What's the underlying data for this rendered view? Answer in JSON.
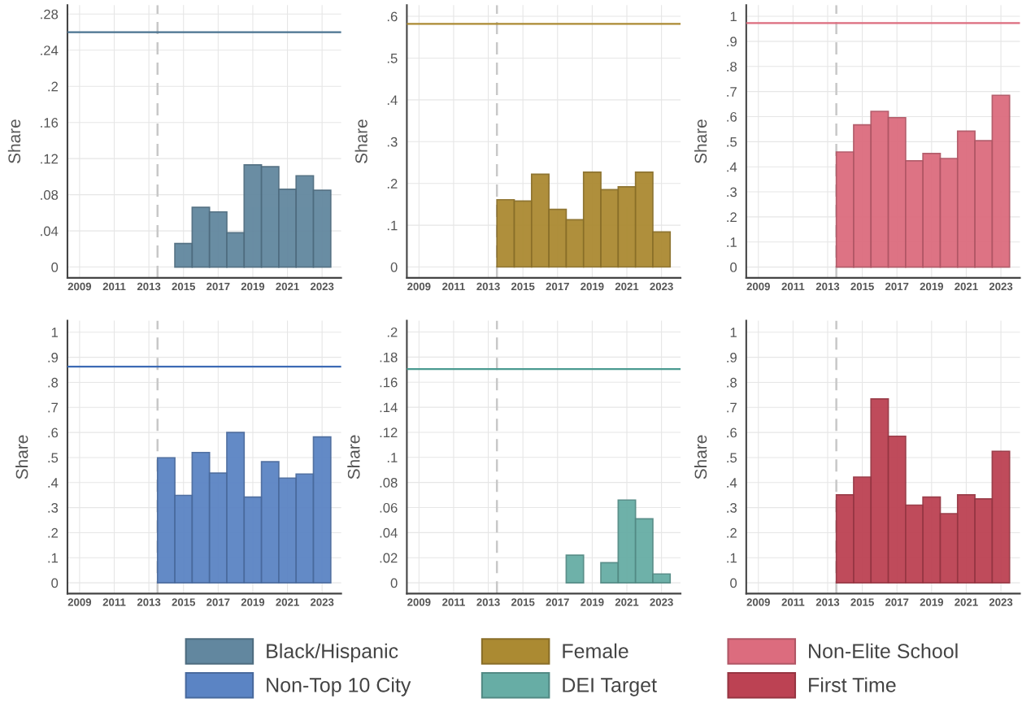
{
  "chart_data": [
    {
      "type": "bar",
      "ylabel": "Share",
      "series": [
        {
          "name": "Black/Hispanic",
          "color": "#62879f",
          "x": [
            2015,
            2016,
            2017,
            2018,
            2019,
            2020,
            2021,
            2022,
            2023
          ],
          "values": [
            0.026,
            0.066,
            0.061,
            0.038,
            0.113,
            0.111,
            0.086,
            0.101,
            0.085
          ]
        }
      ],
      "xlim": [
        2008.3,
        2024.1
      ],
      "xticks": [
        2009,
        2011,
        2013,
        2015,
        2017,
        2019,
        2021,
        2023
      ],
      "ylim": [
        -0.012,
        0.29
      ],
      "yticks": [
        0,
        {
          "value": 0.04,
          "label": ".04"
        },
        {
          "value": 0.08,
          "label": ".08"
        },
        {
          "value": 0.12,
          "label": ".12"
        },
        {
          "value": 0.16,
          "label": ".16"
        },
        {
          "value": 0.2,
          "label": ".2"
        },
        {
          "value": 0.24,
          "label": ".24"
        },
        {
          "value": 0.28,
          "label": ".28"
        }
      ],
      "ref_lines": [
        {
          "axis": "x",
          "value": 2013.5,
          "color": "#c8c8c8",
          "line_style": "dashed"
        },
        {
          "axis": "y",
          "value": 0.26,
          "color": "#4a7390",
          "line_style": "solid"
        }
      ],
      "grid": true,
      "legend": "bottom"
    },
    {
      "type": "bar",
      "ylabel": "Share",
      "x": [
        2014,
        2015,
        2016,
        2017,
        2018,
        2019,
        2020,
        2021,
        2022,
        2023
      ],
      "series": [
        {
          "name": "Female",
          "color": "#ab8a32",
          "values": [
            0.161,
            0.158,
            0.222,
            0.138,
            0.113,
            0.227,
            0.185,
            0.192,
            0.227,
            0.084
          ]
        }
      ],
      "xlim": [
        2008.3,
        2024.1
      ],
      "xticks": [
        2009,
        2011,
        2013,
        2015,
        2017,
        2019,
        2021,
        2023
      ],
      "ylim": [
        -0.026,
        0.627
      ],
      "yticks": [
        0,
        {
          "value": 0.1,
          "label": ".1"
        },
        {
          "value": 0.2,
          "label": ".2"
        },
        {
          "value": 0.3,
          "label": ".3"
        },
        {
          "value": 0.4,
          "label": ".4"
        },
        {
          "value": 0.5,
          "label": ".5"
        },
        {
          "value": 0.6,
          "label": ".6"
        }
      ],
      "ref_lines": [
        {
          "axis": "x",
          "value": 2013.5,
          "color": "#c8c8c8",
          "line_style": "dashed"
        },
        {
          "axis": "y",
          "value": 0.582,
          "color": "#ab8a32",
          "line_style": "solid"
        }
      ],
      "grid": true,
      "legend": "bottom"
    },
    {
      "type": "bar",
      "ylabel": "Share",
      "x": [
        2014,
        2015,
        2016,
        2017,
        2018,
        2019,
        2020,
        2021,
        2022,
        2023
      ],
      "series": [
        {
          "name": "Non-Elite School",
          "color": "#dc6c7e",
          "values": [
            0.459,
            0.567,
            0.621,
            0.596,
            0.424,
            0.453,
            0.433,
            0.542,
            0.504,
            0.685
          ]
        }
      ],
      "xlim": [
        2008.3,
        2024.1
      ],
      "xticks": [
        2009,
        2011,
        2013,
        2015,
        2017,
        2019,
        2021,
        2023
      ],
      "ylim": [
        -0.043,
        1.045
      ],
      "yticks": [
        0,
        {
          "value": 0.1,
          "label": ".1"
        },
        {
          "value": 0.2,
          "label": ".2"
        },
        {
          "value": 0.3,
          "label": ".3"
        },
        {
          "value": 0.4,
          "label": ".4"
        },
        {
          "value": 0.5,
          "label": ".5"
        },
        {
          "value": 0.6,
          "label": ".6"
        },
        {
          "value": 0.7,
          "label": ".7"
        },
        {
          "value": 0.8,
          "label": ".8"
        },
        {
          "value": 0.9,
          "label": ".9"
        },
        1
      ],
      "ref_lines": [
        {
          "axis": "x",
          "value": 2013.5,
          "color": "#c8c8c8",
          "line_style": "dashed"
        },
        {
          "axis": "y",
          "value": 0.973,
          "color": "#dc6c7e",
          "line_style": "solid"
        }
      ],
      "grid": true,
      "legend": "bottom"
    },
    {
      "type": "bar",
      "ylabel": "Share",
      "x": [
        2014,
        2015,
        2016,
        2017,
        2018,
        2019,
        2020,
        2021,
        2022,
        2023
      ],
      "series": [
        {
          "name": "Non-Top 10 City",
          "color": "#5b84c4",
          "values": [
            0.499,
            0.349,
            0.52,
            0.438,
            0.6,
            0.342,
            0.483,
            0.418,
            0.434,
            0.582
          ]
        }
      ],
      "xlim": [
        2008.3,
        2024.1
      ],
      "xticks": [
        2009,
        2011,
        2013,
        2015,
        2017,
        2019,
        2021,
        2023
      ],
      "ylim": [
        -0.043,
        1.046
      ],
      "yticks": [
        0,
        {
          "value": 0.1,
          "label": ".1"
        },
        {
          "value": 0.2,
          "label": ".2"
        },
        {
          "value": 0.3,
          "label": ".3"
        },
        {
          "value": 0.4,
          "label": ".4"
        },
        {
          "value": 0.5,
          "label": ".5"
        },
        {
          "value": 0.6,
          "label": ".6"
        },
        {
          "value": 0.7,
          "label": ".7"
        },
        {
          "value": 0.8,
          "label": ".8"
        },
        {
          "value": 0.9,
          "label": ".9"
        },
        1
      ],
      "ref_lines": [
        {
          "axis": "x",
          "value": 2013.5,
          "color": "#c8c8c8",
          "line_style": "dashed"
        },
        {
          "axis": "y",
          "value": 0.863,
          "color": "#3d6bb5",
          "line_style": "solid"
        }
      ],
      "grid": true,
      "legend": "bottom"
    },
    {
      "type": "bar",
      "ylabel": "Share",
      "series": [
        {
          "name": "DEI Target",
          "color": "#67ada5",
          "x": [
            2018,
            2020,
            2021,
            2022,
            2023
          ],
          "values": [
            0.022,
            0.016,
            0.066,
            0.051,
            0.007
          ]
        }
      ],
      "xlim": [
        2008.3,
        2024.1
      ],
      "xticks": [
        2009,
        2011,
        2013,
        2015,
        2017,
        2019,
        2021,
        2023
      ],
      "ylim": [
        -0.0086,
        0.209
      ],
      "yticks": [
        0,
        {
          "value": 0.02,
          "label": ".02"
        },
        {
          "value": 0.04,
          "label": ".04"
        },
        {
          "value": 0.06,
          "label": ".06"
        },
        {
          "value": 0.08,
          "label": ".08"
        },
        {
          "value": 0.1,
          "label": ".1"
        },
        {
          "value": 0.12,
          "label": ".12"
        },
        {
          "value": 0.14,
          "label": ".14"
        },
        {
          "value": 0.16,
          "label": ".16"
        },
        {
          "value": 0.18,
          "label": ".18"
        },
        {
          "value": 0.2,
          "label": ".2"
        }
      ],
      "ref_lines": [
        {
          "axis": "x",
          "value": 2013.5,
          "color": "#c8c8c8",
          "line_style": "dashed"
        },
        {
          "axis": "y",
          "value": 0.1705,
          "color": "#4a9a90",
          "line_style": "solid"
        }
      ],
      "grid": true,
      "legend": "bottom"
    },
    {
      "type": "bar",
      "ylabel": "Share",
      "x": [
        2014,
        2015,
        2016,
        2017,
        2018,
        2019,
        2020,
        2021,
        2022,
        2023
      ],
      "series": [
        {
          "name": "First Time",
          "color": "#bc4253",
          "values": [
            0.351,
            0.422,
            0.734,
            0.585,
            0.31,
            0.342,
            0.276,
            0.351,
            0.335,
            0.525
          ]
        }
      ],
      "xlim": [
        2008.3,
        2024.1
      ],
      "xticks": [
        2009,
        2011,
        2013,
        2015,
        2017,
        2019,
        2021,
        2023
      ],
      "ylim": [
        -0.043,
        1.046
      ],
      "yticks": [
        0,
        {
          "value": 0.1,
          "label": ".1"
        },
        {
          "value": 0.2,
          "label": ".2"
        },
        {
          "value": 0.3,
          "label": ".3"
        },
        {
          "value": 0.4,
          "label": ".4"
        },
        {
          "value": 0.5,
          "label": ".5"
        },
        {
          "value": 0.6,
          "label": ".6"
        },
        {
          "value": 0.7,
          "label": ".7"
        },
        {
          "value": 0.8,
          "label": ".8"
        },
        {
          "value": 0.9,
          "label": ".9"
        },
        1
      ],
      "ref_lines": [
        {
          "axis": "x",
          "value": 2013.5,
          "color": "#c8c8c8",
          "line_style": "dashed"
        }
      ],
      "grid": true,
      "legend": "bottom"
    }
  ]
}
